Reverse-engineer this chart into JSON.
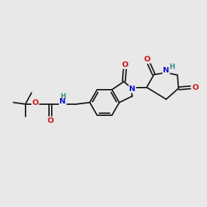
{
  "background_color": "#e8e8e8",
  "bond_color": "#1a1a1a",
  "atom_colors": {
    "N": "#1414cc",
    "O": "#cc1414",
    "H": "#3a8888",
    "C": "#1a1a1a"
  },
  "figsize": [
    3.0,
    3.0
  ],
  "dpi": 100,
  "xlim": [
    0,
    10
  ],
  "ylim": [
    0,
    10
  ]
}
